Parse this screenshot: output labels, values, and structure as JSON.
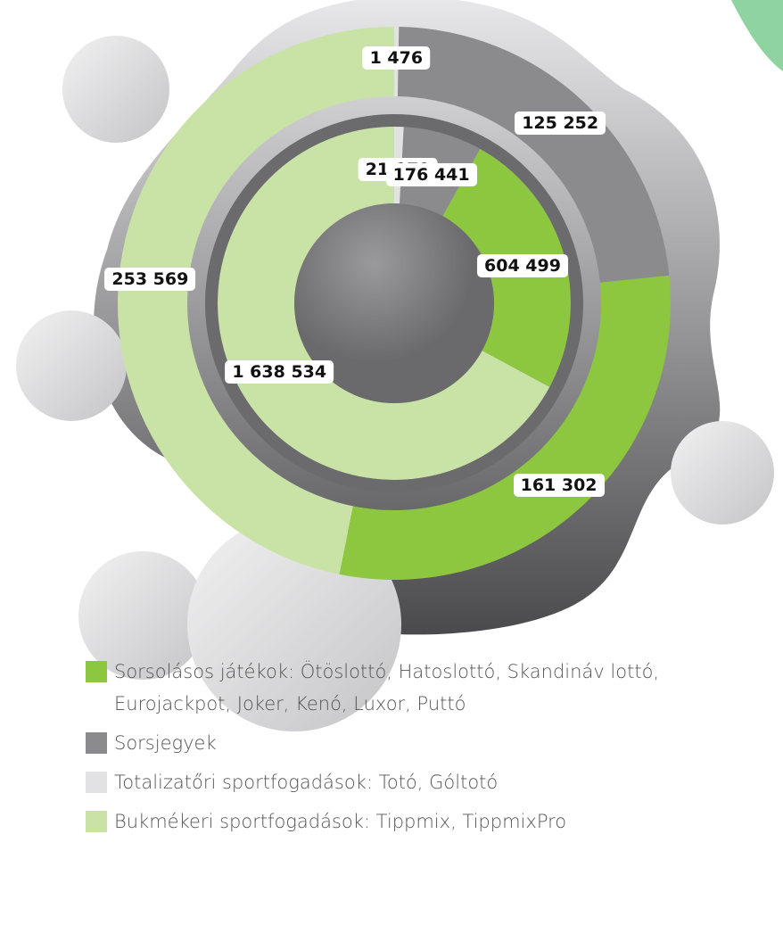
{
  "chart_data": {
    "type": "donut",
    "categories": [
      "Totalizatőri sportfogadások: Totó, Góltotó",
      "Sorsjegyek",
      "Sorsolásos játékok: Ötöslottó, Hatoslottó, Skandináv lottó, Eurojackpot, Joker, Kenó, Luxor, Puttó",
      "Bukmékeri sportfogadások: Tippmix, TippmixPro"
    ],
    "colors": [
      "#e2e2e4",
      "#8b8b8e",
      "#8dc63f",
      "#c9e2a6"
    ],
    "rings": [
      {
        "values": [
          1476,
          125252,
          161302,
          253569
        ],
        "value_labels": [
          "1 476",
          "125 252",
          "161 302",
          "253 569"
        ]
      },
      {
        "values": [
          21079,
          176441,
          604499,
          1638534
        ],
        "value_labels": [
          "21 079",
          "176 441",
          "604 499",
          "1 638 534"
        ]
      }
    ]
  }
}
